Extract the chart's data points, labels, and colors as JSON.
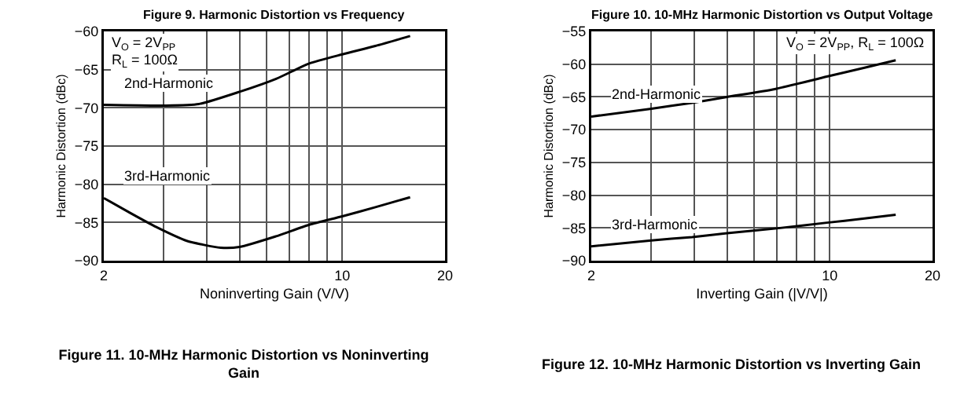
{
  "chart_data": [
    {
      "type": "line",
      "title": "Figure 11. 10-MHz Harmonic Distortion vs Noninverting Gain",
      "xlabel": "Noninverting Gain (V/V)",
      "ylabel": "Harmonic Distortion (dBc)",
      "log": "x",
      "grid": true,
      "xlim": [
        2,
        20
      ],
      "xticks": [
        2,
        {
          "value": 3,
          "label": null
        },
        {
          "value": 4,
          "label": null
        },
        {
          "value": 5,
          "label": null
        },
        {
          "value": 6,
          "label": null
        },
        {
          "value": 7,
          "label": null
        },
        {
          "value": 8,
          "label": null
        },
        {
          "value": 9,
          "label": null
        },
        10,
        20
      ],
      "ylim": [
        -90,
        -60
      ],
      "yticks": [
        -90,
        -85,
        -80,
        -75,
        -70,
        -65,
        -60
      ],
      "annotations": [
        "Figure 9. Harmonic Distortion vs Frequency",
        "V$_{O}$ = 2V$_{PP}$",
        "R$_{L}$ = 100Ω"
      ],
      "series": [
        {
          "name": "2nd-Harmonic",
          "color": "#000000",
          "x": [
            2,
            3,
            3.8,
            5,
            6.4,
            8,
            10,
            12.5,
            15.8
          ],
          "values": [
            -69.6,
            -69.7,
            -69.5,
            -67.9,
            -66.2,
            -64.2,
            -63,
            -61.9,
            -60.6
          ]
        },
        {
          "name": "3rd-Harmonic",
          "color": "#000000",
          "x": [
            2,
            2.4,
            2.85,
            3.5,
            4.4,
            5,
            6.4,
            8,
            10,
            12.5,
            15.8
          ],
          "values": [
            -81.8,
            -83.8,
            -85.6,
            -87.4,
            -88.3,
            -88.2,
            -86.8,
            -85.3,
            -84.2,
            -83,
            -81.7
          ]
        }
      ]
    },
    {
      "type": "line",
      "title": "Figure 12. 10-MHz Harmonic Distortion vs Inverting Gain",
      "xlabel": "Inverting Gain (|V/V|)",
      "ylabel": "Harmonic Distortion (dBc)",
      "log": "x",
      "grid": true,
      "xlim": [
        2,
        20
      ],
      "xticks": [
        2,
        {
          "value": 3,
          "label": null
        },
        {
          "value": 4,
          "label": null
        },
        {
          "value": 5,
          "label": null
        },
        {
          "value": 6,
          "label": null
        },
        {
          "value": 7,
          "label": null
        },
        {
          "value": 8,
          "label": null
        },
        {
          "value": 9,
          "label": null
        },
        10,
        20
      ],
      "ylim": [
        -90,
        -55
      ],
      "yticks": [
        -90,
        -85,
        -80,
        -75,
        -70,
        -65,
        -60,
        -55
      ],
      "annotations": [
        "Figure 10. 10-MHz Harmonic Distortion vs Output Voltage",
        "V$_{O}$ = 2V$_{PP}$, R$_{L}$ = 100Ω"
      ],
      "series": [
        {
          "name": "2nd-Harmonic",
          "color": "#000000",
          "x": [
            2,
            3,
            3.95,
            5,
            6.9,
            9.8,
            12.5,
            15.6
          ],
          "values": [
            -68,
            -66.8,
            -65.9,
            -65,
            -63.8,
            -61.9,
            -60.6,
            -59.4
          ]
        },
        {
          "name": "3rd-Harmonic",
          "color": "#000000",
          "x": [
            2,
            3,
            3.95,
            5,
            6.9,
            9.8,
            12.5,
            15.6
          ],
          "values": [
            -87.8,
            -86.9,
            -86.4,
            -85.8,
            -85.1,
            -84.2,
            -83.6,
            -83
          ]
        }
      ]
    }
  ]
}
